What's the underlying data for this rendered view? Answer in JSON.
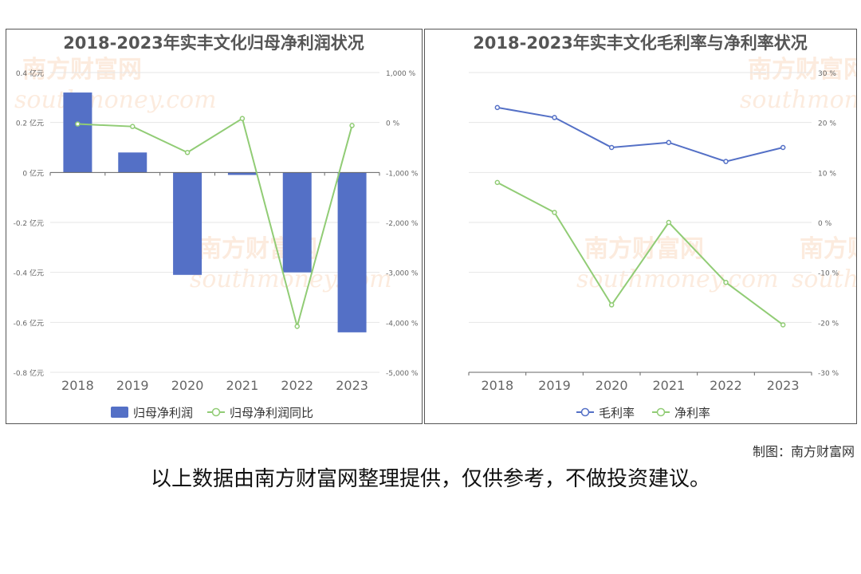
{
  "watermark": {
    "cn": "南方财富网",
    "en": "southmoney.com"
  },
  "credit": "制图：南方财富网",
  "disclaimer": "以上数据由南方财富网整理提供，仅供参考，不做投资建议。",
  "chart_data": [
    {
      "type": "bar",
      "title": "2018-2023年实丰文化归母净利润状况",
      "categories": [
        "2018",
        "2019",
        "2020",
        "2021",
        "2022",
        "2023"
      ],
      "y_left": {
        "ticks": [
          0.4,
          0.2,
          0,
          -0.2,
          -0.4,
          -0.6,
          -0.8
        ],
        "labels": [
          "0.4 亿元",
          "0.2 亿元",
          "0 亿元",
          "-0.2 亿元",
          "-0.4 亿元",
          "-0.6 亿元",
          "-0.8 亿元"
        ],
        "ylim": [
          -0.8,
          0.4
        ]
      },
      "y_right": {
        "ticks": [
          1000,
          0,
          -1000,
          -2000,
          -3000,
          -4000,
          -5000
        ],
        "labels": [
          "1,000 %",
          "0 %",
          "-1,000 %",
          "-2,000 %",
          "-3,000 %",
          "-4,000 %",
          "-5,000 %"
        ],
        "ylim": [
          -5000,
          1000
        ]
      },
      "grid": true,
      "legend_position": "bottom-center",
      "series": [
        {
          "name": "归母净利润",
          "kind": "bar",
          "axis": "left",
          "color": "#5470c6",
          "values": [
            0.32,
            0.08,
            -0.41,
            -0.01,
            -0.4,
            -0.64
          ]
        },
        {
          "name": "归母净利润同比",
          "kind": "line",
          "axis": "right",
          "color": "#91cc75",
          "values": [
            -30,
            -80,
            -600,
            80,
            -4080,
            -60
          ]
        }
      ]
    },
    {
      "type": "line",
      "title": "2018-2023年实丰文化毛利率与净利率状况",
      "categories": [
        "2018",
        "2019",
        "2020",
        "2021",
        "2022",
        "2023"
      ],
      "y_right": {
        "ticks": [
          30,
          20,
          10,
          0,
          -10,
          -20,
          -30
        ],
        "labels": [
          "30 %",
          "20 %",
          "10 %",
          "0 %",
          "-10 %",
          "-20 %",
          "-30 %"
        ],
        "ylim": [
          -30,
          30
        ]
      },
      "grid": true,
      "legend_position": "bottom-center",
      "series": [
        {
          "name": "毛利率",
          "color": "#5470c6",
          "values": [
            23,
            21,
            15,
            16,
            12.2,
            15
          ]
        },
        {
          "name": "净利率",
          "color": "#91cc75",
          "values": [
            8,
            2,
            -16.5,
            0,
            -12,
            -20.5
          ]
        }
      ]
    }
  ]
}
